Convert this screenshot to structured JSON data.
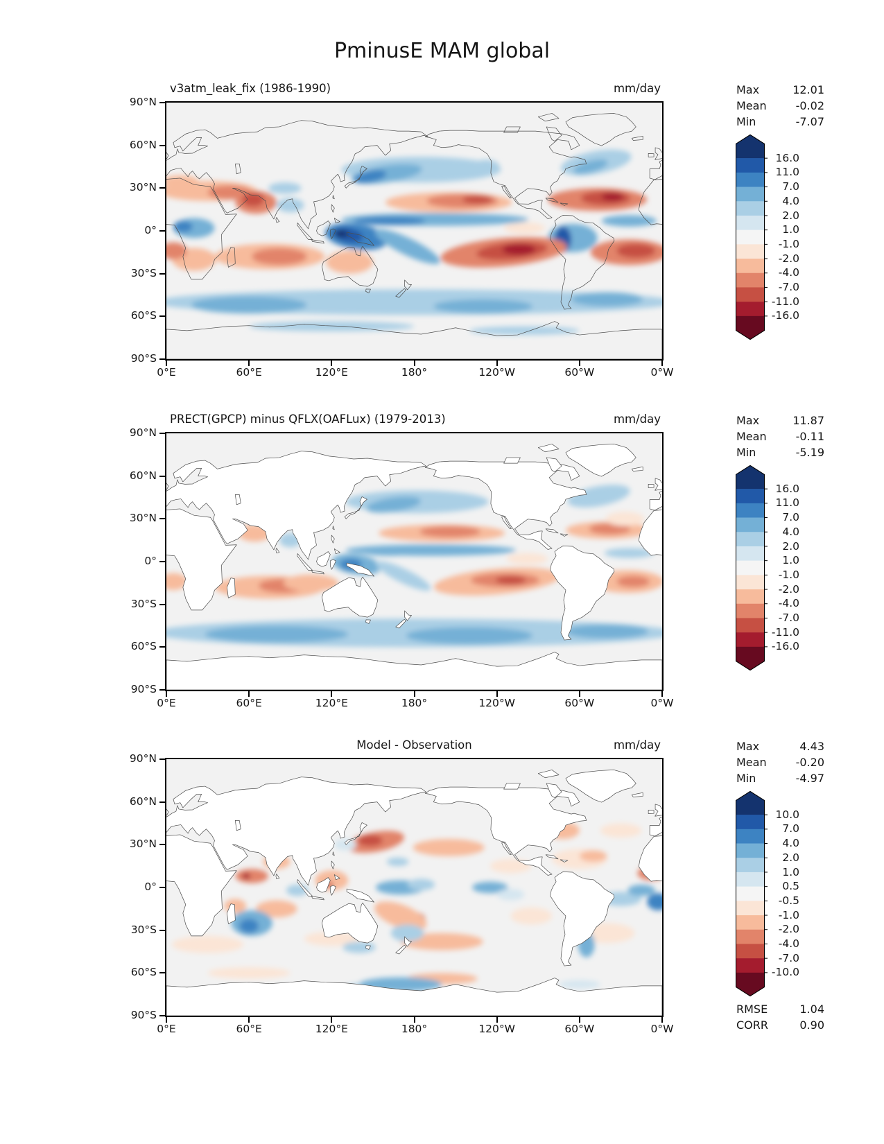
{
  "figure_title": "PminusE MAM global",
  "stat_labels": {
    "max": "Max",
    "mean": "Mean",
    "min": "Min",
    "rmse": "RMSE",
    "corr": "CORR"
  },
  "axis": {
    "x_ticks": [
      "0°E",
      "60°E",
      "120°E",
      "180°",
      "120°W",
      "60°W",
      "0°W"
    ],
    "y_ticks": [
      "90°N",
      "60°N",
      "30°N",
      "0°",
      "30°S",
      "60°S",
      "90°S"
    ]
  },
  "colors": {
    "palette": [
      "#14336e",
      "#2159a8",
      "#3d83c2",
      "#74b0d6",
      "#aacfe5",
      "#d5e6f0",
      "#f5f5f5",
      "#fbe5d6",
      "#f7bb9c",
      "#e2846a",
      "#c65043",
      "#a41c2e",
      "#670a20"
    ],
    "map_background": "#f2f2f2",
    "coastline": "#4d4d4d",
    "land_mask": "#ffffff"
  },
  "panels": [
    {
      "title": "v3atm_leak_fix (1986-1990)",
      "units": "mm/day",
      "stats": {
        "max": "12.01",
        "mean": "-0.02",
        "min": "-7.07"
      },
      "colorbar_ticks": [
        "16.0",
        "11.0",
        "7.0",
        "4.0",
        "2.0",
        "1.0",
        "-1.0",
        "-2.0",
        "-4.0",
        "-7.0",
        "-11.0",
        "-16.0"
      ]
    },
    {
      "title": "PRECT(GPCP) minus QFLX(OAFLux) (1979-2013)",
      "units": "mm/day",
      "stats": {
        "max": "11.87",
        "mean": "-0.11",
        "min": "-5.19"
      },
      "colorbar_ticks": [
        "16.0",
        "11.0",
        "7.0",
        "4.0",
        "2.0",
        "1.0",
        "-1.0",
        "-2.0",
        "-4.0",
        "-7.0",
        "-11.0",
        "-16.0"
      ]
    },
    {
      "title": "Model - Observation",
      "units": "mm/day",
      "stats": {
        "max": "4.43",
        "mean": "-0.20",
        "min": "-4.97"
      },
      "rmse": "1.04",
      "corr": "0.90",
      "colorbar_ticks": [
        "10.0",
        "7.0",
        "4.0",
        "2.0",
        "1.0",
        "0.5",
        "-0.5",
        "-1.0",
        "-2.0",
        "-4.0",
        "-7.0",
        "-10.0"
      ]
    }
  ],
  "chart_data": {
    "type": "heatmap",
    "subtype": "filled_contour_global_maps",
    "title": "PminusE MAM global",
    "variable": "P minus E",
    "season": "MAM",
    "region": "global",
    "units": "mm/day",
    "projection": "equirectangular, longitude 0°E to 360°E (Pacific centered), latitude 90°S to 90°N",
    "colormap": "diverging red-blue (positive = blue, negative = red), 13 bands with arrow extensions both ends",
    "x_axis": {
      "ticks": [
        "0°E",
        "60°E",
        "120°E",
        "180°",
        "120°W",
        "60°W",
        "0°W"
      ],
      "range_deg": [
        0,
        360
      ]
    },
    "y_axis": {
      "ticks": [
        "90°N",
        "60°N",
        "30°N",
        "0°",
        "30°S",
        "60°S",
        "90°S"
      ],
      "range_deg": [
        -90,
        90
      ]
    },
    "panels": [
      {
        "name": "v3atm_leak_fix (1986-1990)",
        "kind": "model",
        "contour_levels": [
          -16,
          -11,
          -7,
          -4,
          -2,
          -1,
          1,
          2,
          4,
          7,
          11,
          16
        ],
        "max": 12.01,
        "mean": -0.02,
        "min": -7.07,
        "land_masked": false
      },
      {
        "name": "PRECT(GPCP) minus QFLX(OAFLux) (1979-2013)",
        "kind": "observation",
        "contour_levels": [
          -16,
          -11,
          -7,
          -4,
          -2,
          -1,
          1,
          2,
          4,
          7,
          11,
          16
        ],
        "max": 11.87,
        "mean": -0.11,
        "min": -5.19,
        "land_masked": true
      },
      {
        "name": "Model - Observation",
        "kind": "difference",
        "contour_levels": [
          -10,
          -7,
          -4,
          -2,
          -1,
          -0.5,
          0.5,
          1,
          2,
          4,
          7,
          10
        ],
        "max": 4.43,
        "mean": -0.2,
        "min": -4.97,
        "rmse": 1.04,
        "corr": 0.9,
        "land_masked": true
      }
    ]
  }
}
